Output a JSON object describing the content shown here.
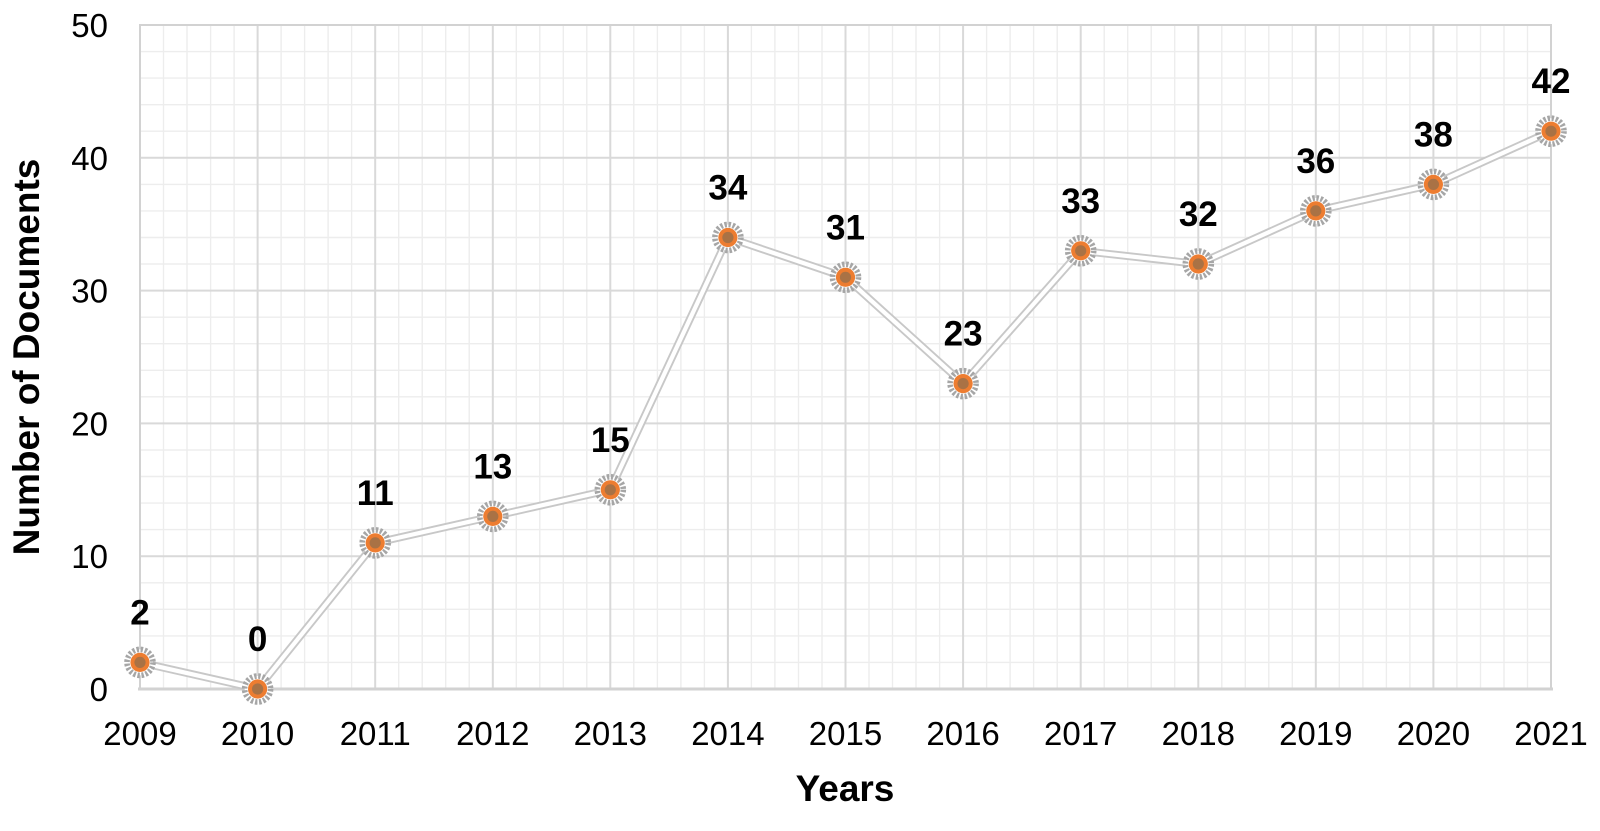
{
  "chart_data": {
    "type": "line",
    "title": "",
    "xlabel": "Years",
    "ylabel": "Number of Documents",
    "categories": [
      "2009",
      "2010",
      "2011",
      "2012",
      "2013",
      "2014",
      "2015",
      "2016",
      "2017",
      "2018",
      "2019",
      "2020",
      "2021"
    ],
    "series": [
      {
        "name": "Number of Documents",
        "values": [
          2,
          0,
          11,
          13,
          15,
          34,
          31,
          23,
          33,
          32,
          36,
          38,
          42
        ]
      }
    ],
    "data_labels": [
      2,
      0,
      11,
      13,
      15,
      34,
      31,
      23,
      33,
      32,
      36,
      38,
      42
    ],
    "ylim": [
      0,
      50
    ],
    "y_ticks": [
      0,
      10,
      20,
      30,
      40,
      50
    ],
    "y_minor_step": 2,
    "x_minor_divisions": 5,
    "grid": "major+minor",
    "legend": "none",
    "colors": {
      "line_outer": "#c8c8c8",
      "line_inner": "#ffffff",
      "marker_ring": "#a6a6a6",
      "marker_fill": "#ed7d31",
      "marker_core": "#a97245",
      "grid_major": "#d9d9d9",
      "grid_minor": "#ededed",
      "plot_border": "#d2d2d2",
      "text": "#000000"
    }
  }
}
